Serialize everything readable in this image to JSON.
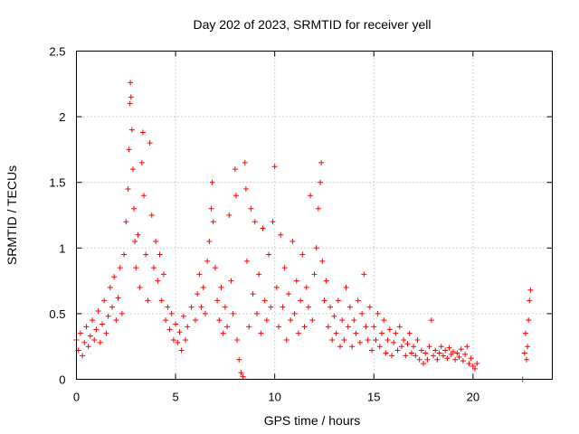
{
  "chart_data": {
    "type": "scatter",
    "title": "Day 202 of 2023, SRMTID for receiver yell",
    "xlabel": "GPS time / hours",
    "ylabel": "SRMTID / TECUs",
    "xlim": [
      0,
      24
    ],
    "ylim": [
      0,
      2.5
    ],
    "xticks": [
      0,
      5,
      10,
      15,
      20
    ],
    "yticks": [
      0,
      0.5,
      1,
      1.5,
      2,
      2.5
    ],
    "ytick_labels": [
      "0",
      "0.5",
      "1",
      "1.5",
      "2",
      "2.5"
    ],
    "grid": true,
    "marker": "+",
    "color": "#ff0000",
    "series": [
      {
        "name": "SRMTID",
        "points": [
          [
            0.0,
            0.3
          ],
          [
            0.1,
            0.22
          ],
          [
            0.2,
            0.35
          ],
          [
            0.3,
            0.18
          ],
          [
            0.4,
            0.28
          ],
          [
            0.5,
            0.4
          ],
          [
            0.6,
            0.25
          ],
          [
            0.7,
            0.33
          ],
          [
            0.8,
            0.45
          ],
          [
            0.9,
            0.3
          ],
          [
            1.0,
            0.38
          ],
          [
            1.1,
            0.52
          ],
          [
            1.2,
            0.28
          ],
          [
            1.3,
            0.42
          ],
          [
            1.4,
            0.6
          ],
          [
            1.5,
            0.35
          ],
          [
            1.6,
            0.48
          ],
          [
            1.7,
            0.7
          ],
          [
            1.8,
            0.55
          ],
          [
            1.9,
            0.78
          ],
          [
            2.0,
            0.45
          ],
          [
            2.1,
            0.62
          ],
          [
            2.2,
            0.85
          ],
          [
            2.3,
            0.5
          ],
          [
            2.4,
            0.95
          ],
          [
            2.5,
            1.2
          ],
          [
            2.6,
            1.45
          ],
          [
            2.65,
            1.75
          ],
          [
            2.7,
            2.1
          ],
          [
            2.72,
            2.26
          ],
          [
            2.75,
            2.15
          ],
          [
            2.8,
            1.9
          ],
          [
            2.85,
            1.6
          ],
          [
            2.9,
            1.3
          ],
          [
            2.95,
            1.05
          ],
          [
            3.0,
            0.85
          ],
          [
            3.1,
            1.1
          ],
          [
            3.2,
            0.7
          ],
          [
            3.3,
            1.65
          ],
          [
            3.35,
            1.88
          ],
          [
            3.4,
            1.4
          ],
          [
            3.5,
            0.95
          ],
          [
            3.6,
            0.6
          ],
          [
            3.7,
            1.8
          ],
          [
            3.8,
            1.25
          ],
          [
            3.9,
            0.85
          ],
          [
            4.0,
            1.05
          ],
          [
            4.1,
            0.75
          ],
          [
            4.2,
            0.95
          ],
          [
            4.3,
            0.6
          ],
          [
            4.4,
            0.8
          ],
          [
            4.5,
            0.45
          ],
          [
            4.6,
            0.55
          ],
          [
            4.7,
            0.38
          ],
          [
            4.8,
            0.5
          ],
          [
            4.9,
            0.3
          ],
          [
            5.0,
            0.42
          ],
          [
            5.1,
            0.28
          ],
          [
            5.2,
            0.36
          ],
          [
            5.3,
            0.22
          ],
          [
            5.4,
            0.48
          ],
          [
            5.5,
            0.3
          ],
          [
            5.6,
            0.4
          ],
          [
            5.8,
            0.55
          ],
          [
            6.0,
            0.45
          ],
          [
            6.1,
            0.65
          ],
          [
            6.2,
            0.8
          ],
          [
            6.3,
            0.55
          ],
          [
            6.4,
            0.7
          ],
          [
            6.5,
            0.5
          ],
          [
            6.6,
            0.9
          ],
          [
            6.7,
            1.05
          ],
          [
            6.8,
            1.3
          ],
          [
            6.85,
            1.5
          ],
          [
            6.9,
            1.2
          ],
          [
            7.0,
            0.85
          ],
          [
            7.1,
            0.6
          ],
          [
            7.2,
            0.45
          ],
          [
            7.3,
            0.7
          ],
          [
            7.4,
            0.35
          ],
          [
            7.5,
            0.55
          ],
          [
            7.6,
            0.4
          ],
          [
            7.7,
            1.25
          ],
          [
            7.8,
            0.75
          ],
          [
            7.9,
            0.5
          ],
          [
            8.0,
            1.6
          ],
          [
            8.05,
            1.4
          ],
          [
            8.1,
            0.3
          ],
          [
            8.2,
            0.15
          ],
          [
            8.3,
            0.05
          ],
          [
            8.4,
            0.02
          ],
          [
            8.5,
            1.65
          ],
          [
            8.55,
            1.45
          ],
          [
            8.6,
            0.9
          ],
          [
            8.7,
            0.4
          ],
          [
            8.8,
            1.3
          ],
          [
            8.9,
            0.65
          ],
          [
            9.0,
            1.2
          ],
          [
            9.1,
            0.5
          ],
          [
            9.2,
            0.8
          ],
          [
            9.3,
            0.35
          ],
          [
            9.4,
            1.15
          ],
          [
            9.5,
            0.6
          ],
          [
            9.6,
            0.45
          ],
          [
            9.7,
            0.95
          ],
          [
            9.8,
            0.55
          ],
          [
            9.9,
            1.2
          ],
          [
            10.0,
            1.62
          ],
          [
            10.1,
            0.7
          ],
          [
            10.2,
            0.4
          ],
          [
            10.3,
            1.1
          ],
          [
            10.4,
            0.55
          ],
          [
            10.5,
            0.85
          ],
          [
            10.6,
            0.3
          ],
          [
            10.7,
            0.65
          ],
          [
            10.8,
            0.45
          ],
          [
            10.9,
            1.05
          ],
          [
            11.0,
            0.5
          ],
          [
            11.1,
            0.75
          ],
          [
            11.2,
            0.35
          ],
          [
            11.3,
            0.6
          ],
          [
            11.4,
            0.95
          ],
          [
            11.5,
            0.4
          ],
          [
            11.6,
            0.7
          ],
          [
            11.7,
            0.55
          ],
          [
            11.8,
            1.4
          ],
          [
            11.9,
            0.45
          ],
          [
            12.0,
            0.8
          ],
          [
            12.1,
            1.0
          ],
          [
            12.2,
            1.3
          ],
          [
            12.3,
            1.5
          ],
          [
            12.35,
            1.65
          ],
          [
            12.4,
            0.9
          ],
          [
            12.5,
            0.6
          ],
          [
            12.6,
            0.75
          ],
          [
            12.7,
            0.4
          ],
          [
            12.8,
            0.55
          ],
          [
            12.9,
            0.3
          ],
          [
            13.0,
            0.48
          ],
          [
            13.1,
            0.35
          ],
          [
            13.2,
            0.6
          ],
          [
            13.3,
            0.25
          ],
          [
            13.4,
            0.45
          ],
          [
            13.5,
            0.3
          ],
          [
            13.6,
            0.7
          ],
          [
            13.7,
            0.4
          ],
          [
            13.8,
            0.55
          ],
          [
            13.9,
            0.25
          ],
          [
            14.0,
            0.45
          ],
          [
            14.1,
            0.35
          ],
          [
            14.2,
            0.6
          ],
          [
            14.3,
            0.28
          ],
          [
            14.4,
            0.5
          ],
          [
            14.5,
            0.8
          ],
          [
            14.6,
            0.4
          ],
          [
            14.7,
            0.3
          ],
          [
            14.8,
            0.55
          ],
          [
            14.9,
            0.22
          ],
          [
            15.0,
            0.4
          ],
          [
            15.1,
            0.3
          ],
          [
            15.2,
            0.5
          ],
          [
            15.3,
            0.25
          ],
          [
            15.4,
            0.35
          ],
          [
            15.5,
            0.45
          ],
          [
            15.6,
            0.2
          ],
          [
            15.7,
            0.3
          ],
          [
            15.8,
            0.38
          ],
          [
            15.9,
            0.18
          ],
          [
            16.0,
            0.28
          ],
          [
            16.1,
            0.35
          ],
          [
            16.2,
            0.22
          ],
          [
            16.3,
            0.4
          ],
          [
            16.4,
            0.25
          ],
          [
            16.5,
            0.3
          ],
          [
            16.6,
            0.18
          ],
          [
            16.7,
            0.27
          ],
          [
            16.8,
            0.35
          ],
          [
            16.9,
            0.2
          ],
          [
            17.0,
            0.25
          ],
          [
            17.1,
            0.18
          ],
          [
            17.2,
            0.3
          ],
          [
            17.3,
            0.15
          ],
          [
            17.4,
            0.22
          ],
          [
            17.5,
            0.12
          ],
          [
            17.6,
            0.2
          ],
          [
            17.7,
            0.15
          ],
          [
            17.8,
            0.25
          ],
          [
            17.9,
            0.45
          ],
          [
            18.0,
            0.18
          ],
          [
            18.1,
            0.22
          ],
          [
            18.2,
            0.15
          ],
          [
            18.3,
            0.2
          ],
          [
            18.4,
            0.25
          ],
          [
            18.5,
            0.18
          ],
          [
            18.6,
            0.22
          ],
          [
            18.7,
            0.16
          ],
          [
            18.8,
            0.24
          ],
          [
            18.9,
            0.19
          ],
          [
            19.0,
            0.21
          ],
          [
            19.1,
            0.15
          ],
          [
            19.2,
            0.2
          ],
          [
            19.3,
            0.17
          ],
          [
            19.4,
            0.23
          ],
          [
            19.5,
            0.14
          ],
          [
            19.6,
            0.19
          ],
          [
            19.7,
            0.25
          ],
          [
            19.8,
            0.12
          ],
          [
            19.9,
            0.16
          ],
          [
            20.0,
            0.1
          ],
          [
            20.1,
            0.08
          ],
          [
            20.2,
            0.12
          ],
          [
            22.5,
            0.0
          ],
          [
            22.6,
            0.2
          ],
          [
            22.65,
            0.35
          ],
          [
            22.7,
            0.15
          ],
          [
            22.75,
            0.25
          ],
          [
            22.8,
            0.45
          ],
          [
            22.85,
            0.6
          ],
          [
            22.9,
            0.68
          ]
        ]
      }
    ]
  }
}
